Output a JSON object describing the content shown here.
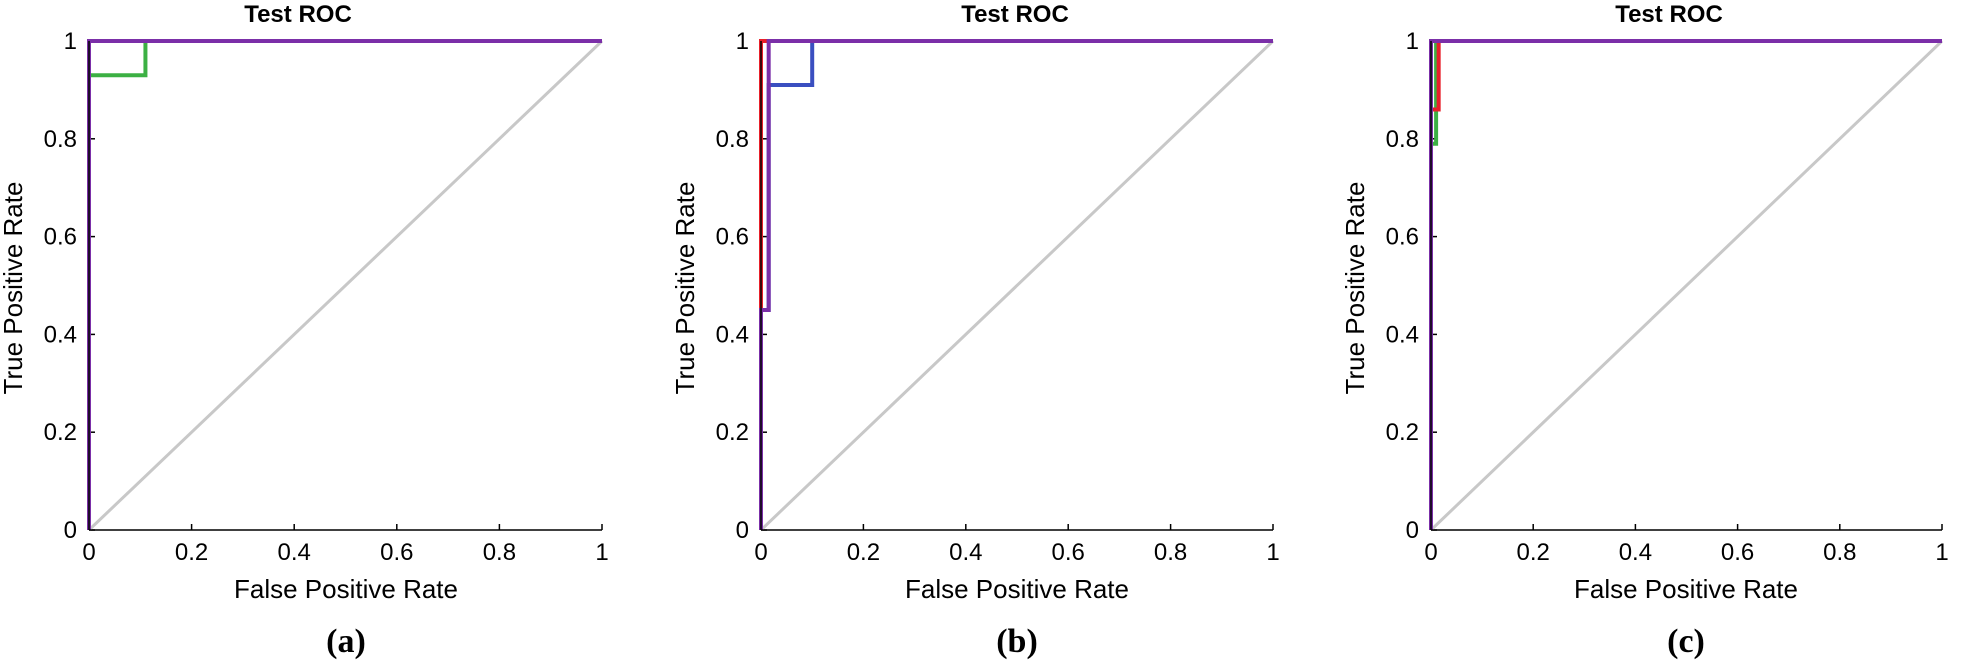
{
  "chart_data": [
    {
      "type": "line",
      "title": "Test ROC",
      "xlabel": "False Positive Rate",
      "ylabel": "True Positive Rate",
      "caption": "(a)",
      "xlim": [
        0,
        1
      ],
      "ylim": [
        0,
        1
      ],
      "xticks": [
        "0",
        "0.2",
        "0.4",
        "0.6",
        "0.8",
        "1"
      ],
      "yticks": [
        "0",
        "0.2",
        "0.4",
        "0.6",
        "0.8",
        "1"
      ],
      "series": [
        {
          "name": "chance",
          "color": "#c8c8c8",
          "points": [
            [
              0,
              0
            ],
            [
              1,
              1
            ]
          ]
        },
        {
          "name": "green",
          "color": "#3cb043",
          "points": [
            [
              0,
              0
            ],
            [
              0,
              0.93
            ],
            [
              0.11,
              0.93
            ],
            [
              0.11,
              1
            ],
            [
              1,
              1
            ]
          ]
        },
        {
          "name": "purple",
          "color": "#7b2fa8",
          "points": [
            [
              0,
              0
            ],
            [
              0,
              1
            ],
            [
              1,
              1
            ]
          ]
        }
      ]
    },
    {
      "type": "line",
      "title": "Test ROC",
      "xlabel": "False Positive Rate",
      "ylabel": "True Positive Rate",
      "caption": "(b)",
      "xlim": [
        0,
        1
      ],
      "ylim": [
        0,
        1
      ],
      "xticks": [
        "0",
        "0.2",
        "0.4",
        "0.6",
        "0.8",
        "1"
      ],
      "yticks": [
        "0",
        "0.2",
        "0.4",
        "0.6",
        "0.8",
        "1"
      ],
      "series": [
        {
          "name": "chance",
          "color": "#c8c8c8",
          "points": [
            [
              0,
              0
            ],
            [
              1,
              1
            ]
          ]
        },
        {
          "name": "red",
          "color": "#e8202a",
          "points": [
            [
              0,
              0
            ],
            [
              0,
              1
            ],
            [
              1,
              1
            ]
          ]
        },
        {
          "name": "blue",
          "color": "#3a4fc0",
          "points": [
            [
              0,
              0
            ],
            [
              0,
              0.45
            ],
            [
              0.015,
              0.45
            ],
            [
              0.015,
              0.91
            ],
            [
              0.1,
              0.91
            ],
            [
              0.1,
              1
            ],
            [
              1,
              1
            ]
          ]
        },
        {
          "name": "purple",
          "color": "#7b2fa8",
          "points": [
            [
              0,
              0
            ],
            [
              0,
              0.45
            ],
            [
              0.015,
              0.45
            ],
            [
              0.015,
              1
            ],
            [
              1,
              1
            ]
          ]
        }
      ]
    },
    {
      "type": "line",
      "title": "Test ROC",
      "xlabel": "False Positive Rate",
      "ylabel": "True Positive Rate",
      "caption": "(c)",
      "xlim": [
        0,
        1
      ],
      "ylim": [
        0,
        1
      ],
      "xticks": [
        "0",
        "0.2",
        "0.4",
        "0.6",
        "0.8",
        "1"
      ],
      "yticks": [
        "0",
        "0.2",
        "0.4",
        "0.6",
        "0.8",
        "1"
      ],
      "series": [
        {
          "name": "chance",
          "color": "#c8c8c8",
          "points": [
            [
              0,
              0
            ],
            [
              1,
              1
            ]
          ]
        },
        {
          "name": "green",
          "color": "#3cb043",
          "points": [
            [
              0,
              0
            ],
            [
              0,
              0.79
            ],
            [
              0.01,
              0.79
            ],
            [
              0.01,
              1
            ],
            [
              1,
              1
            ]
          ]
        },
        {
          "name": "red",
          "color": "#e8202a",
          "points": [
            [
              0,
              0
            ],
            [
              0,
              0.86
            ],
            [
              0.015,
              0.86
            ],
            [
              0.015,
              1
            ],
            [
              1,
              1
            ]
          ]
        },
        {
          "name": "purple",
          "color": "#7b2fa8",
          "points": [
            [
              0,
              0
            ],
            [
              0,
              1
            ],
            [
              1,
              1
            ]
          ]
        }
      ]
    }
  ]
}
